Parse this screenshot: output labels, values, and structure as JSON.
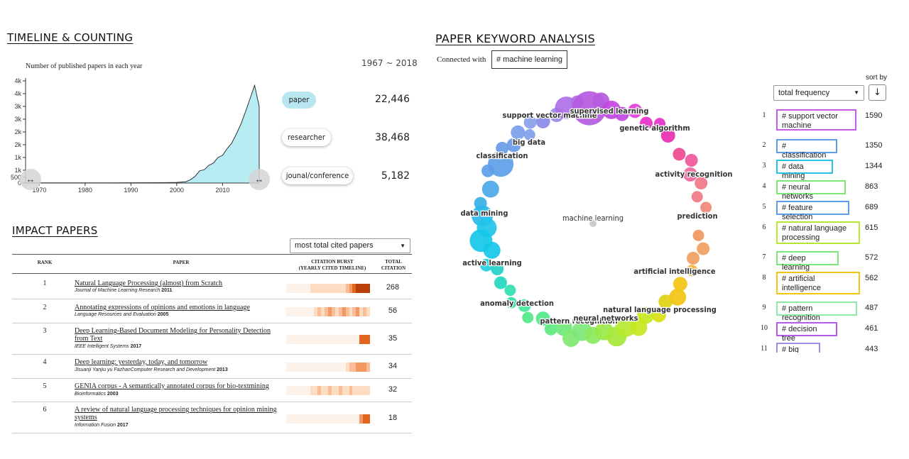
{
  "timeline": {
    "section_title": "TIMELINE & COUNTING",
    "chart_title": "Number of published papers in each year",
    "range_label": "1967 ~ 2018",
    "y_ticks": [
      "4k",
      "4k",
      "3k",
      "3k",
      "2k",
      "2k",
      "1k",
      "1k",
      "500",
      "0"
    ],
    "x_ticks": [
      "1970",
      "1980",
      "1990",
      "2000",
      "2010"
    ],
    "slider_left_arrows": "↔",
    "slider_right_arrows": "↔",
    "stats": [
      {
        "label": "paper",
        "value": "22,446",
        "active": true
      },
      {
        "label": "researcher",
        "value": "38,468",
        "active": false
      },
      {
        "label": "jounal/conference",
        "value": "5,182",
        "active": false
      }
    ],
    "fill_color": "#b6ecf2"
  },
  "chart_data": {
    "type": "area",
    "title": "Number of published papers in each year",
    "x": [
      1967,
      1970,
      1975,
      1980,
      1985,
      1990,
      1995,
      1998,
      2000,
      2002,
      2003,
      2004,
      2005,
      2006,
      2007,
      2008,
      2009,
      2010,
      2011,
      2012,
      2013,
      2014,
      2015,
      2016,
      2017,
      2018
    ],
    "y": [
      5,
      5,
      5,
      8,
      8,
      12,
      15,
      20,
      30,
      60,
      150,
      300,
      550,
      600,
      800,
      900,
      1150,
      1250,
      1550,
      1800,
      2200,
      2650,
      3200,
      3800,
      4400,
      3450
    ],
    "ylim": [
      0,
      4600
    ],
    "xlim": [
      1967,
      2018
    ]
  },
  "impact": {
    "section_title": "IMPACT PAPERS",
    "sort_select": "most total cited papers",
    "headers": {
      "rank": "RANK",
      "paper": "PAPER",
      "burst_line1": "CITATION BURST",
      "burst_line2": "(YEARLY CITED TIMELINE)",
      "total_line1": "TOTAL",
      "total_line2": "CITATION"
    },
    "rows": [
      {
        "rank": "1",
        "title": "Natural Language Processing (almost) from Scratch",
        "venue": "Journal of Machine Learning Research",
        "year": "2011",
        "citations": "268",
        "burst": [
          0,
          0,
          0,
          0,
          0,
          0,
          0,
          1,
          1,
          1,
          1,
          1,
          1,
          1,
          1,
          1,
          1,
          2,
          3,
          4,
          5,
          5,
          5,
          5
        ]
      },
      {
        "rank": "2",
        "title": "Annotating expressions of opinions and emotions in language",
        "venue": "Language Resources and Evaluation",
        "year": "2005",
        "citations": "56",
        "burst": [
          0,
          0,
          0,
          0,
          0,
          0,
          0,
          0,
          1,
          2,
          1,
          2,
          3,
          2,
          1,
          2,
          3,
          2,
          1,
          2,
          3,
          1,
          2,
          1
        ]
      },
      {
        "rank": "3",
        "title": "Deep Learning-Based Document Modeling for Personality Detection from Text",
        "venue": "IEEE Intelligent Systems",
        "year": "2017",
        "citations": "35",
        "burst": [
          0,
          0,
          0,
          0,
          0,
          0,
          0,
          0,
          0,
          0,
          0,
          0,
          0,
          0,
          0,
          0,
          0,
          0,
          0,
          0,
          0,
          4,
          4,
          4
        ]
      },
      {
        "rank": "4",
        "title": "Deep learning: yesterday, today, and tomorrow",
        "venue": "Jisuanji Yanjiu yu FazhanComputer Research and Development",
        "year": "2013",
        "citations": "34",
        "burst": [
          0,
          0,
          0,
          0,
          0,
          0,
          0,
          0,
          0,
          0,
          0,
          0,
          0,
          0,
          0,
          0,
          0,
          1,
          2,
          2,
          3,
          3,
          3,
          2
        ]
      },
      {
        "rank": "5",
        "title": "GENIA corpus - A semantically annotated corpus for bio-textmining",
        "venue": "Bioinformatics",
        "year": "2003",
        "citations": "32",
        "burst": [
          0,
          0,
          0,
          0,
          0,
          0,
          0,
          1,
          1,
          2,
          1,
          1,
          2,
          1,
          1,
          2,
          1,
          1,
          2,
          1,
          1,
          1,
          1,
          1
        ]
      },
      {
        "rank": "6",
        "title": "A review of natural language processing techniques for opinion mining systems",
        "venue": "Information Fusion",
        "year": "2017",
        "citations": "18",
        "burst": [
          0,
          0,
          0,
          0,
          0,
          0,
          0,
          0,
          0,
          0,
          0,
          0,
          0,
          0,
          0,
          0,
          0,
          0,
          0,
          0,
          0,
          3,
          4,
          4
        ]
      }
    ],
    "burst_colors": [
      "#fdf2ea",
      "#fcdcc2",
      "#f9be98",
      "#f29860",
      "#e3661f",
      "#b9400b"
    ]
  },
  "keywords": {
    "section_title": "PAPER KEYWORD ANALYSIS",
    "connected_label": "Connected with",
    "connected_tag": "# machine learning",
    "center_label": "machine learning",
    "sort_by_label": "sort by",
    "sort_select": "total frequency",
    "sort_button": "↓",
    "ring_labels": [
      "support vector machine",
      "supervised learning",
      "genetic algorithm",
      "big data",
      "classification",
      "activity recognition",
      "prediction",
      "data mining",
      "active learning",
      "artificial intelligence",
      "anomaly detection",
      "pattern recognition",
      "neural networks",
      "natural language processing"
    ],
    "list": [
      {
        "idx": "1",
        "label": "# support vector machine",
        "freq": "1590",
        "color": "#c45ce8"
      },
      {
        "idx": "2",
        "label": "# classification",
        "freq": "1350",
        "color": "#5e9ee8"
      },
      {
        "idx": "3",
        "label": "# data mining",
        "freq": "1344",
        "color": "#22c4e8"
      },
      {
        "idx": "4",
        "label": "# neural networks",
        "freq": "863",
        "color": "#7de87a"
      },
      {
        "idx": "5",
        "label": "# feature selection",
        "freq": "689",
        "color": "#5e9ee8"
      },
      {
        "idx": "6",
        "label": "# natural language processing",
        "freq": "615",
        "color": "#b6e830"
      },
      {
        "idx": "7",
        "label": "# deep learning",
        "freq": "572",
        "color": "#7de87a"
      },
      {
        "idx": "8",
        "label": "# artificial intelligence",
        "freq": "562",
        "color": "#f2c414"
      },
      {
        "idx": "9",
        "label": "# pattern recognition",
        "freq": "487",
        "color": "#8ee8a8"
      },
      {
        "idx": "10",
        "label": "# decision tree",
        "freq": "461",
        "color": "#b35ce8"
      },
      {
        "idx": "11",
        "label": "# big data",
        "freq": "443",
        "color": "#9b8ee8"
      }
    ]
  }
}
